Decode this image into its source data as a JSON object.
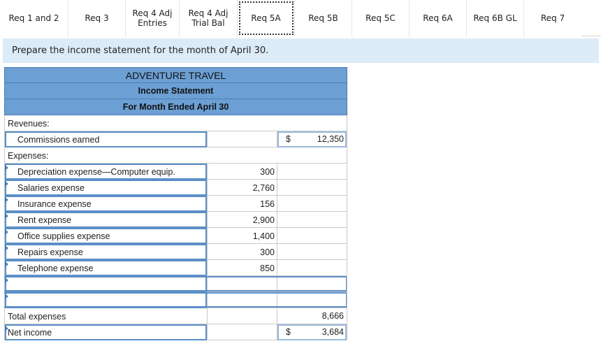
{
  "tabs": [
    {
      "label": "Req 1 and 2"
    },
    {
      "label": "Req 3"
    },
    {
      "label": "Req 4 Adj\nEntries"
    },
    {
      "label": "Req 4 Adj\nTrial Bal"
    },
    {
      "label": "Req 5A"
    },
    {
      "label": "Req 5B"
    },
    {
      "label": "Req 5C"
    },
    {
      "label": "Req 6A"
    },
    {
      "label": "Req 6B GL"
    },
    {
      "label": "Req 7"
    }
  ],
  "instruction": "Prepare the income statement for the month of April 30.",
  "statement": {
    "company": "ADVENTURE TRAVEL",
    "title": "Income Statement",
    "period": "For Month Ended April 30",
    "revenues_label": "Revenues:",
    "revenue": {
      "label": "Commissions earned",
      "currency": "$",
      "amount": "12,350"
    },
    "expenses_label": "Expenses:",
    "expenses": [
      {
        "label": "Depreciation expense—Computer equip.",
        "amount": "300"
      },
      {
        "label": "Salaries expense",
        "amount": "2,760"
      },
      {
        "label": "Insurance expense",
        "amount": "156"
      },
      {
        "label": "Rent expense",
        "amount": "2,900"
      },
      {
        "label": "Office supplies expense",
        "amount": "1,400"
      },
      {
        "label": "Repairs expense",
        "amount": "300"
      },
      {
        "label": "Telephone expense",
        "amount": "850"
      },
      {
        "label": "",
        "amount": ""
      },
      {
        "label": "",
        "amount": ""
      }
    ],
    "total_expenses": {
      "label": "Total expenses",
      "amount": "8,666"
    },
    "net_income": {
      "label": "Net income",
      "currency": "$",
      "amount": "3,684"
    }
  }
}
